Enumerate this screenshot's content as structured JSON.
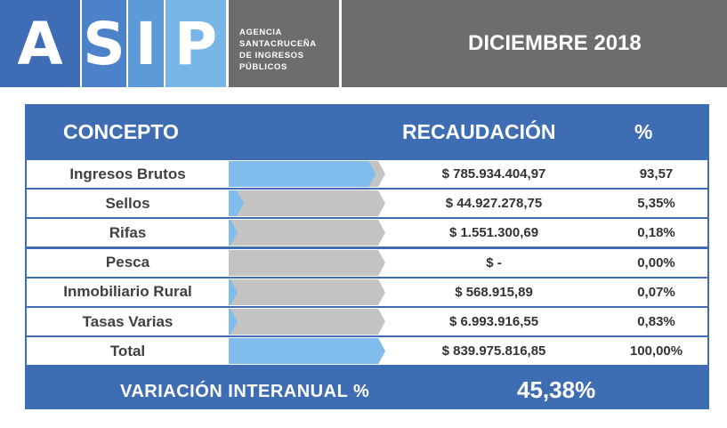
{
  "logo": {
    "letters": [
      "A",
      "S",
      "I",
      "P"
    ]
  },
  "agency": {
    "lines": [
      "AGENCIA",
      "SANTACRUCEÑA",
      "DE INGRESOS",
      "PÚBLICOS"
    ]
  },
  "period": "DICIEMBRE 2018",
  "table": {
    "headers": {
      "concepto": "CONCEPTO",
      "recaudacion": "RECAUDACIÓN",
      "pct": "%"
    },
    "rows": [
      {
        "concepto": "Ingresos Brutos",
        "recaudacion": "$ 785.934.404,97",
        "pct": "93,57",
        "share": 93.57
      },
      {
        "concepto": "Sellos",
        "recaudacion": "$ 44.927.278,75",
        "pct": "5,35%",
        "share": 5.35
      },
      {
        "concepto": "Rifas",
        "recaudacion": "$ 1.551.300,69",
        "pct": "0,18%",
        "share": 0.18
      },
      {
        "concepto": "Pesca",
        "recaudacion": "$ -",
        "pct": "0,00%",
        "share": 0
      },
      {
        "concepto": "Inmobiliario Rural",
        "recaudacion": "$ 568.915,89",
        "pct": "0,07%",
        "share": 0.07
      },
      {
        "concepto": "Tasas Varias",
        "recaudacion": "$ 6.993.916,55",
        "pct": "0,83%",
        "share": 0.83
      },
      {
        "concepto": "Total",
        "recaudacion": "$ 839.975.816,85",
        "pct": "100,00%",
        "share": 100
      }
    ]
  },
  "footer": {
    "label": "VARIACIÓN INTERANUAL %",
    "value": "45,38%"
  },
  "colors": {
    "header_gray": "#6d6d6d",
    "table_blue": "#3f6db4",
    "bar_blue": "#80bcec",
    "bar_gray": "#c3c3c3",
    "logo_a": "#3e6db5",
    "logo_s": "#4b82c8",
    "logo_i": "#5e9ad8",
    "logo_p": "#79b6e8"
  }
}
